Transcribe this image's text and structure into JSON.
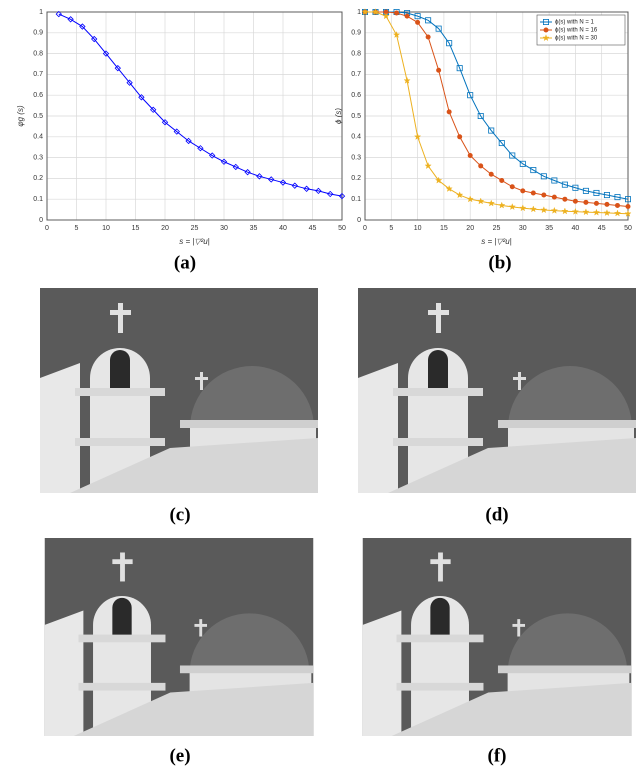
{
  "chart_data": [
    {
      "type": "line",
      "ylabel": "φg (s)",
      "xlabel": "s = |▽²u|",
      "xlim": [
        0,
        50
      ],
      "ylim": [
        0,
        1
      ],
      "xticks": [
        0,
        5,
        10,
        15,
        20,
        25,
        30,
        35,
        40,
        45,
        50
      ],
      "yticks": [
        0,
        0.1,
        0.2,
        0.3,
        0.4,
        0.5,
        0.6,
        0.7,
        0.8,
        0.9,
        1
      ],
      "grid": true,
      "x": [
        2,
        4,
        6,
        8,
        10,
        12,
        14,
        16,
        18,
        20,
        22,
        24,
        26,
        28,
        30,
        32,
        34,
        36,
        38,
        40,
        42,
        44,
        46,
        48,
        50
      ],
      "series": [
        {
          "color": "#0000ff",
          "marker": "diamond",
          "values": [
            0.99,
            0.965,
            0.93,
            0.87,
            0.8,
            0.73,
            0.66,
            0.59,
            0.53,
            0.47,
            0.425,
            0.38,
            0.345,
            0.31,
            0.28,
            0.255,
            0.23,
            0.21,
            0.195,
            0.18,
            0.165,
            0.15,
            0.14,
            0.125,
            0.115
          ]
        }
      ]
    },
    {
      "type": "line",
      "ylabel": "ϕ (s)",
      "xlabel": "s = |▽²u|",
      "xlim": [
        0,
        50
      ],
      "ylim": [
        0,
        1
      ],
      "xticks": [
        0,
        5,
        10,
        15,
        20,
        25,
        30,
        35,
        40,
        45,
        50
      ],
      "yticks": [
        0,
        0.1,
        0.2,
        0.3,
        0.4,
        0.5,
        0.6,
        0.7,
        0.8,
        0.9,
        1
      ],
      "grid": true,
      "legend": "upper right",
      "x": [
        0,
        2,
        4,
        6,
        8,
        10,
        12,
        14,
        16,
        18,
        20,
        22,
        24,
        26,
        28,
        30,
        32,
        34,
        36,
        38,
        40,
        42,
        44,
        46,
        48,
        50
      ],
      "series": [
        {
          "name": "ϕ(s) with N = 1",
          "color": "#0072bd",
          "marker": "square",
          "values": [
            1,
            1,
            1,
            1,
            0.995,
            0.98,
            0.96,
            0.92,
            0.85,
            0.73,
            0.6,
            0.5,
            0.43,
            0.37,
            0.31,
            0.27,
            0.24,
            0.21,
            0.19,
            0.17,
            0.155,
            0.14,
            0.13,
            0.12,
            0.11,
            0.1
          ]
        },
        {
          "name": "ϕ(s) with N = 16",
          "color": "#d95319",
          "marker": "circle",
          "values": [
            1,
            1,
            1,
            0.995,
            0.98,
            0.95,
            0.88,
            0.72,
            0.52,
            0.4,
            0.31,
            0.26,
            0.22,
            0.19,
            0.16,
            0.14,
            0.13,
            0.12,
            0.11,
            0.1,
            0.09,
            0.085,
            0.08,
            0.075,
            0.07,
            0.065
          ]
        },
        {
          "name": "ϕ(s) with N = 30",
          "color": "#edb120",
          "marker": "star",
          "values": [
            1,
            1,
            0.98,
            0.89,
            0.67,
            0.4,
            0.26,
            0.19,
            0.15,
            0.12,
            0.1,
            0.09,
            0.08,
            0.07,
            0.063,
            0.057,
            0.052,
            0.048,
            0.045,
            0.042,
            0.04,
            0.038,
            0.036,
            0.034,
            0.032,
            0.03
          ]
        }
      ]
    }
  ],
  "captions": [
    "(a)",
    "(b)",
    "(c)",
    "(d)",
    "(e)",
    "(f)"
  ]
}
